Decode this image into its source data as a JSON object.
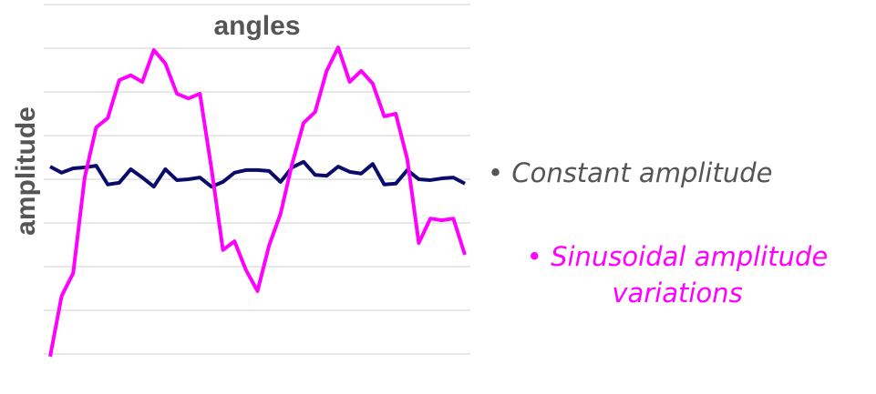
{
  "chart_data": {
    "type": "line",
    "title": "angles",
    "y_label": "amplitude",
    "x": [
      0,
      1,
      2,
      3,
      4,
      5,
      6,
      7,
      8,
      9,
      10,
      11,
      12,
      13,
      14,
      15,
      16,
      17,
      18,
      19,
      20,
      21,
      22,
      23,
      24,
      25,
      26,
      27,
      28,
      29,
      30,
      31,
      32,
      33,
      34,
      35,
      36
    ],
    "xlim": [
      0,
      36
    ],
    "ylim": [
      -0.1,
      8.1
    ],
    "yticks": [
      0,
      1,
      2,
      3,
      4,
      5,
      6,
      7,
      8
    ],
    "grid": true,
    "series": [
      {
        "name": "Constant amplitude",
        "color": "#0b0b6b",
        "values": [
          4.29,
          4.15,
          4.25,
          4.27,
          4.31,
          3.88,
          3.92,
          4.23,
          4.04,
          3.83,
          4.23,
          3.98,
          4.0,
          4.04,
          3.83,
          3.94,
          4.15,
          4.21,
          4.21,
          4.19,
          3.94,
          4.27,
          4.4,
          4.1,
          4.08,
          4.29,
          4.17,
          4.13,
          4.35,
          3.88,
          3.9,
          4.21,
          4.0,
          3.98,
          4.02,
          4.04,
          3.9
        ]
      },
      {
        "name": "Sinusoidal amplitude variations",
        "color": "#ff00ff",
        "values": [
          -0.06,
          1.33,
          1.85,
          4.04,
          5.19,
          5.4,
          6.27,
          6.38,
          6.23,
          6.96,
          6.65,
          5.96,
          5.85,
          5.96,
          4.25,
          2.38,
          2.58,
          1.92,
          1.44,
          2.48,
          3.21,
          4.35,
          5.29,
          5.54,
          6.48,
          7.02,
          6.23,
          6.48,
          6.19,
          5.44,
          5.5,
          4.46,
          2.54,
          3.1,
          3.06,
          3.1,
          2.27
        ]
      }
    ],
    "legend_colors": [
      "#555555",
      "#ff00ff"
    ]
  }
}
